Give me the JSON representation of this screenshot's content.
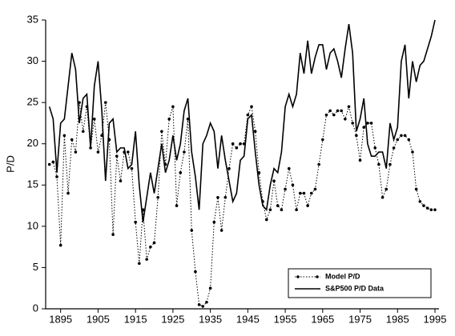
{
  "chart_data": {
    "type": "line",
    "ylabel": "P/D",
    "x": [
      1892,
      1893,
      1894,
      1895,
      1896,
      1897,
      1898,
      1899,
      1900,
      1901,
      1902,
      1903,
      1904,
      1905,
      1906,
      1907,
      1908,
      1909,
      1910,
      1911,
      1912,
      1913,
      1914,
      1915,
      1916,
      1917,
      1918,
      1919,
      1920,
      1921,
      1922,
      1923,
      1924,
      1925,
      1926,
      1927,
      1928,
      1929,
      1930,
      1931,
      1932,
      1933,
      1934,
      1935,
      1936,
      1937,
      1938,
      1939,
      1940,
      1941,
      1942,
      1943,
      1944,
      1945,
      1946,
      1947,
      1948,
      1949,
      1950,
      1951,
      1952,
      1953,
      1954,
      1955,
      1956,
      1957,
      1958,
      1959,
      1960,
      1961,
      1962,
      1963,
      1964,
      1965,
      1966,
      1967,
      1968,
      1969,
      1970,
      1971,
      1972,
      1973,
      1974,
      1975,
      1976,
      1977,
      1978,
      1979,
      1980,
      1981,
      1982,
      1983,
      1984,
      1985,
      1986,
      1987,
      1988,
      1989,
      1990,
      1991,
      1992,
      1993,
      1994,
      1995
    ],
    "series": [
      {
        "name": "Model P/D",
        "color": "#000000",
        "line_style": "dotted",
        "marker": "circle",
        "values": [
          17.5,
          17.8,
          16,
          7.7,
          21,
          14,
          20.5,
          19,
          25,
          21.5,
          24.5,
          19.5,
          23,
          19,
          21,
          25,
          20.5,
          9,
          18.5,
          15.5,
          19,
          19,
          17,
          10.5,
          5.5,
          12,
          6,
          7.5,
          8,
          13.5,
          21.5,
          17.5,
          23,
          24.5,
          12.5,
          16.5,
          19,
          23,
          9.5,
          4.5,
          0.5,
          0.3,
          0.8,
          2.5,
          10.5,
          13.5,
          9.5,
          13.5,
          17,
          20,
          19.5,
          20,
          20,
          23.5,
          24.5,
          21.5,
          16.5,
          13,
          10.8,
          12,
          15.5,
          12.5,
          12,
          14.5,
          17,
          15,
          12,
          14,
          14,
          12.5,
          14,
          14.5,
          17.5,
          20.5,
          23.5,
          24,
          23.5,
          24,
          24,
          23,
          24.5,
          22.5,
          21,
          18,
          22,
          22.5,
          22.5,
          19.5,
          17.5,
          13.5,
          14.5,
          17.5,
          19.5,
          20.5,
          21,
          21,
          20.5,
          19,
          14.5,
          13,
          12.5,
          12.2,
          12,
          12
        ]
      },
      {
        "name": "S&P500 P/D Data",
        "color": "#000000",
        "line_style": "solid",
        "marker": "none",
        "values": [
          24.5,
          23,
          16.5,
          22.5,
          23,
          27,
          31,
          29,
          22.5,
          25.5,
          26,
          19.5,
          27,
          30,
          24,
          15.5,
          22.5,
          23,
          19,
          19.5,
          19.5,
          17,
          17.5,
          21.5,
          15,
          10.5,
          13.5,
          16.5,
          14,
          17,
          20,
          16.5,
          18,
          21,
          18,
          20,
          24,
          25.5,
          19,
          16,
          12,
          20,
          21,
          22.5,
          21.5,
          17,
          21,
          18,
          15.5,
          13,
          14,
          18,
          18.5,
          23,
          23.5,
          19,
          15,
          12.5,
          12,
          15,
          17,
          16.5,
          19,
          24.5,
          26,
          24.5,
          26,
          31,
          28.5,
          32.5,
          28.5,
          30.5,
          32,
          32,
          29,
          31,
          31.5,
          30,
          28,
          31.5,
          34.5,
          31,
          21.5,
          23,
          25.5,
          20,
          18.5,
          18.5,
          19,
          19,
          17,
          22.5,
          20.5,
          22,
          30,
          32,
          25.5,
          30,
          27.5,
          29.5,
          30,
          31.5,
          33,
          35
        ]
      }
    ],
    "xlim": [
      1891,
      1995
    ],
    "xticks": [
      1895,
      1905,
      1915,
      1925,
      1935,
      1945,
      1955,
      1965,
      1975,
      1985,
      1995
    ],
    "ylim": [
      0,
      35
    ],
    "yticks": [
      0,
      5,
      10,
      15,
      20,
      25,
      30,
      35
    ],
    "legend": "lower right"
  }
}
